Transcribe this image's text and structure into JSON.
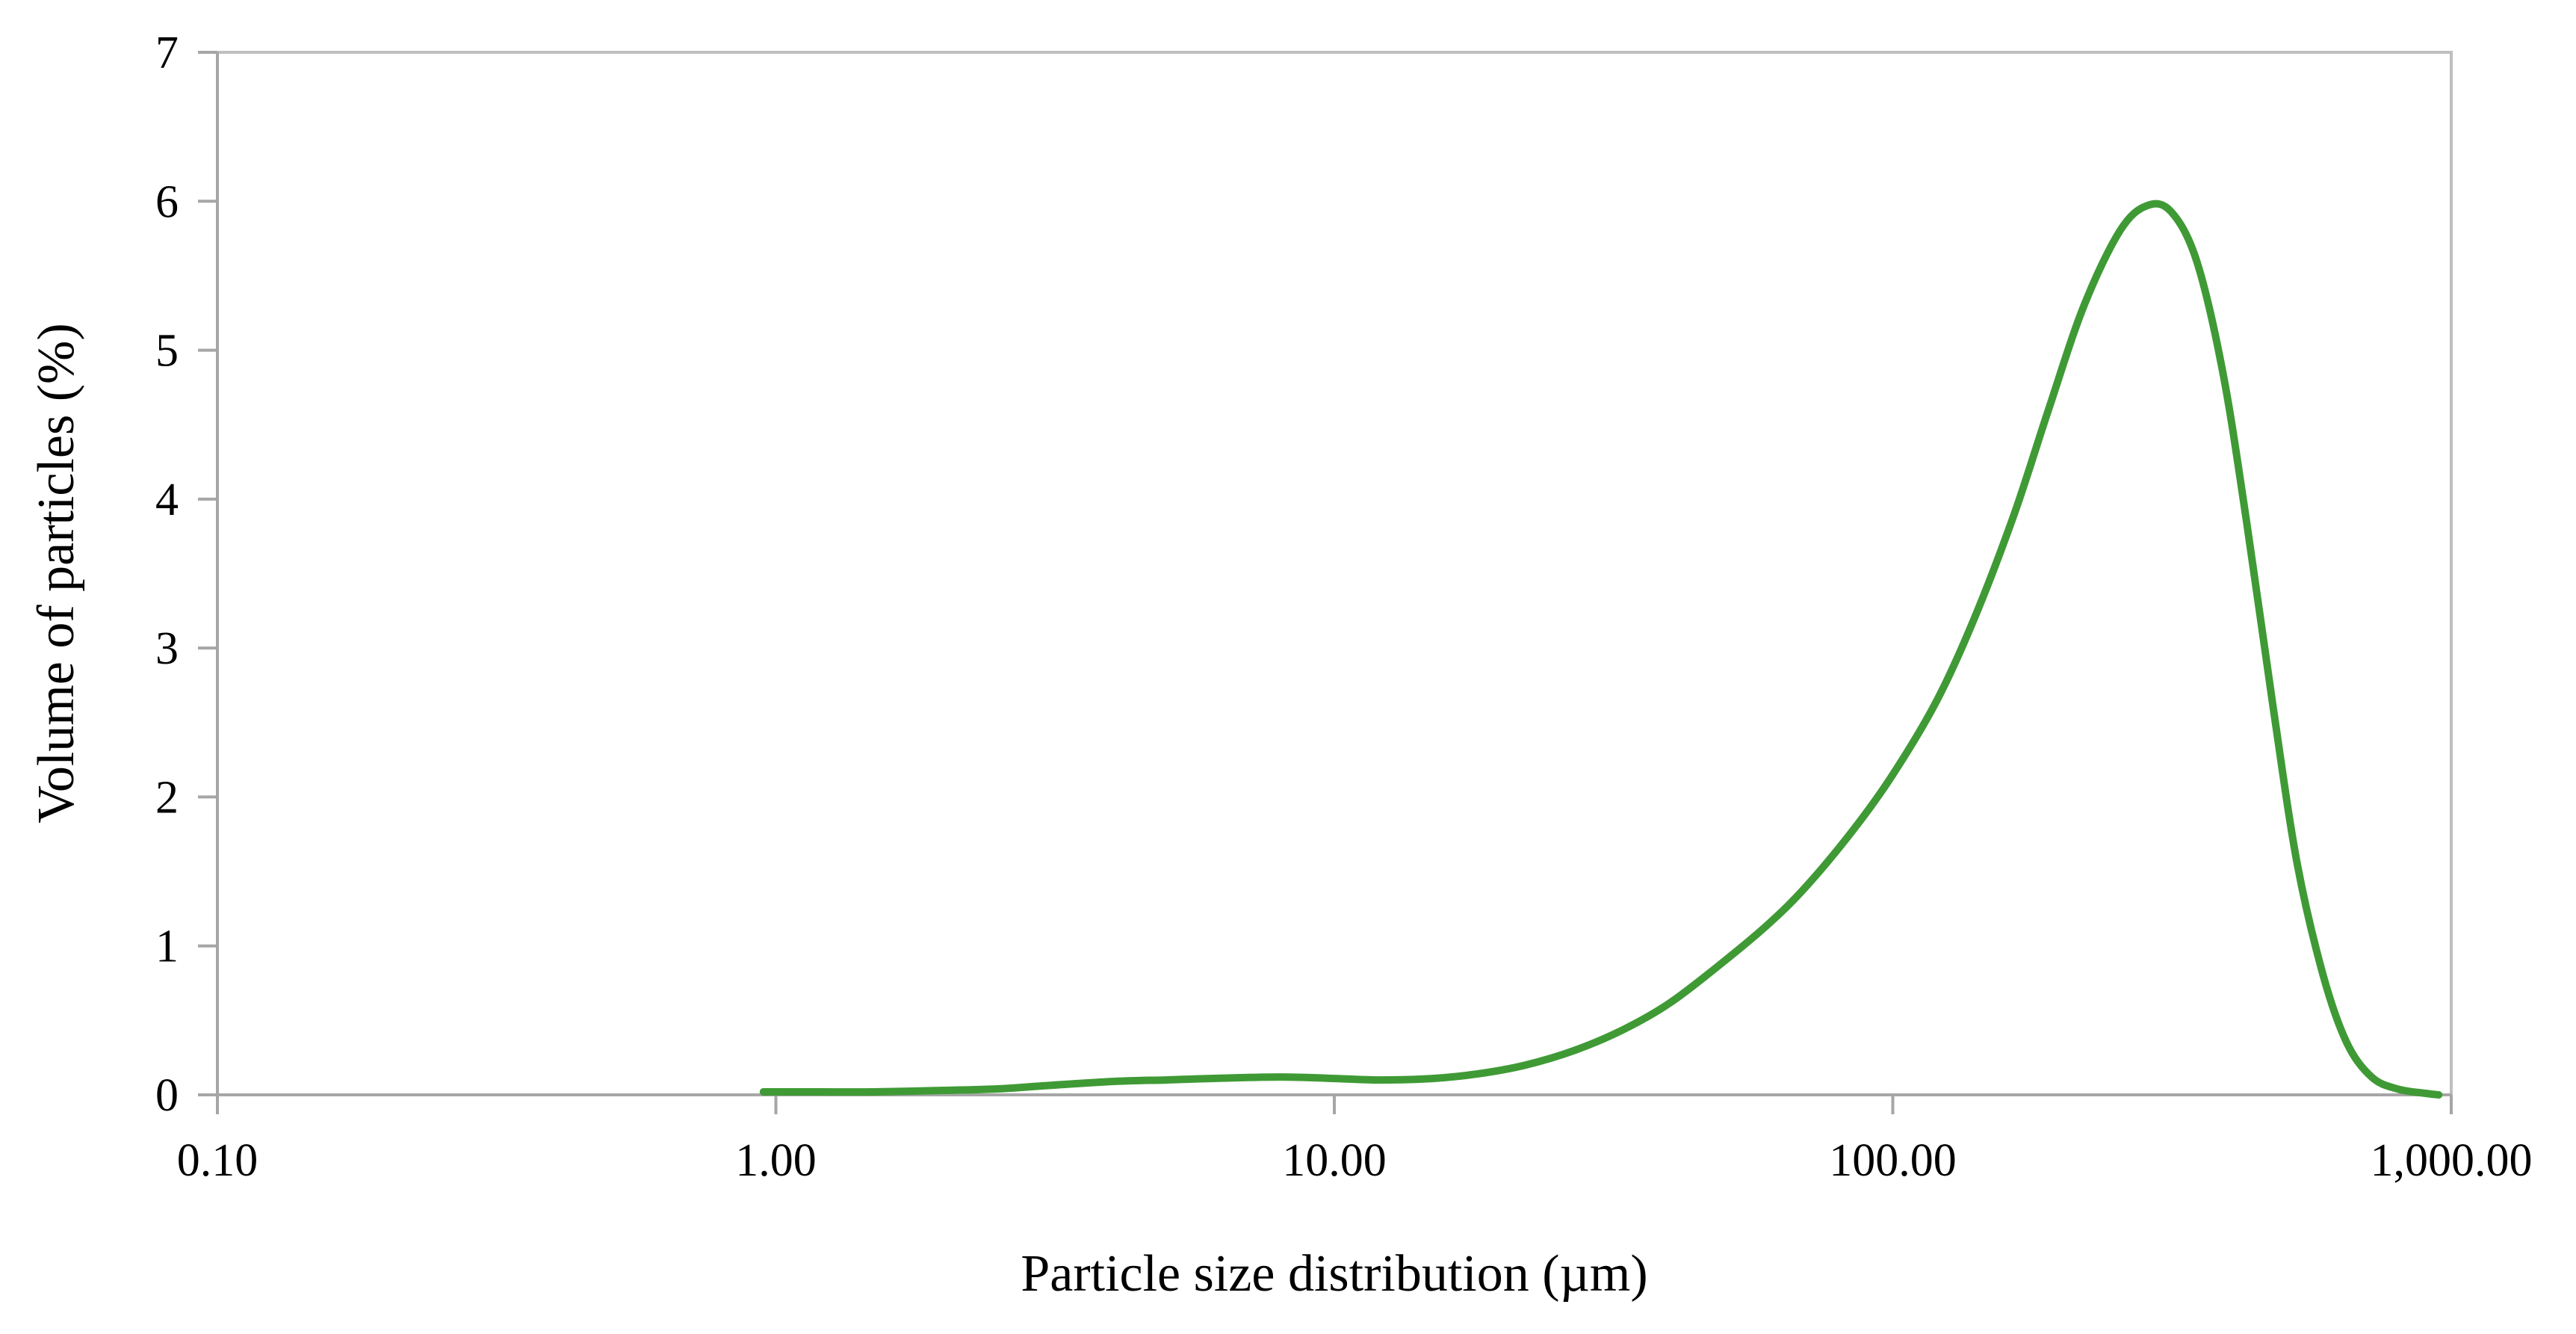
{
  "chart_data": {
    "type": "line",
    "title": "",
    "xlabel": "Particle size distribution (µm)",
    "ylabel": "Volume of particles (%)",
    "x_scale": "log",
    "xlim": [
      0.1,
      1000
    ],
    "ylim": [
      0,
      7
    ],
    "grid": false,
    "legend": "none",
    "x_ticks": [
      {
        "value": 0.1,
        "label": "0.10"
      },
      {
        "value": 1,
        "label": "1.00"
      },
      {
        "value": 10,
        "label": "10.00"
      },
      {
        "value": 100,
        "label": "100.00"
      },
      {
        "value": 1000,
        "label": "1,000.00"
      }
    ],
    "y_ticks": [
      {
        "value": 0,
        "label": "0"
      },
      {
        "value": 1,
        "label": "1"
      },
      {
        "value": 2,
        "label": "2"
      },
      {
        "value": 3,
        "label": "3"
      },
      {
        "value": 4,
        "label": "4"
      },
      {
        "value": 5,
        "label": "5"
      },
      {
        "value": 6,
        "label": "6"
      },
      {
        "value": 7,
        "label": "7"
      }
    ],
    "series": [
      {
        "color": "#3f9a35",
        "points": [
          [
            0.95,
            0.02
          ],
          [
            1.2,
            0.02
          ],
          [
            1.5,
            0.02
          ],
          [
            2.0,
            0.03
          ],
          [
            2.5,
            0.04
          ],
          [
            3.0,
            0.06
          ],
          [
            4.0,
            0.09
          ],
          [
            5.0,
            0.1
          ],
          [
            6.0,
            0.11
          ],
          [
            8.0,
            0.12
          ],
          [
            10.0,
            0.11
          ],
          [
            12.0,
            0.1
          ],
          [
            15.0,
            0.11
          ],
          [
            18.0,
            0.14
          ],
          [
            22.0,
            0.2
          ],
          [
            27.0,
            0.3
          ],
          [
            33.0,
            0.44
          ],
          [
            40.0,
            0.62
          ],
          [
            50.0,
            0.9
          ],
          [
            60.0,
            1.15
          ],
          [
            70.0,
            1.4
          ],
          [
            85.0,
            1.78
          ],
          [
            100.0,
            2.15
          ],
          [
            120.0,
            2.65
          ],
          [
            140.0,
            3.2
          ],
          [
            165.0,
            3.9
          ],
          [
            190.0,
            4.6
          ],
          [
            220.0,
            5.3
          ],
          [
            255.0,
            5.8
          ],
          [
            285.0,
            5.97
          ],
          [
            315.0,
            5.93
          ],
          [
            350.0,
            5.6
          ],
          [
            390.0,
            4.85
          ],
          [
            430.0,
            3.85
          ],
          [
            480.0,
            2.6
          ],
          [
            530.0,
            1.55
          ],
          [
            590.0,
            0.8
          ],
          [
            650.0,
            0.35
          ],
          [
            720.0,
            0.12
          ],
          [
            800.0,
            0.04
          ],
          [
            900.0,
            0.01
          ],
          [
            950.0,
            0.0
          ]
        ]
      }
    ]
  }
}
